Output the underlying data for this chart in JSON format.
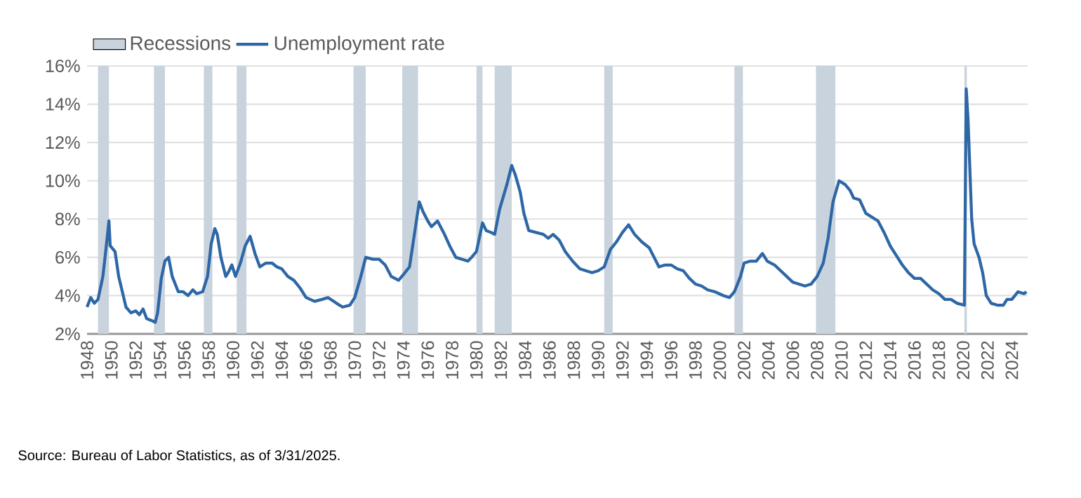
{
  "chart_data": {
    "type": "line",
    "x": [
      1948.0,
      1948.3,
      1948.6,
      1948.9,
      1949.3,
      1949.6,
      1949.8,
      1949.9,
      1950.3,
      1950.6,
      1950.9,
      1951.2,
      1951.6,
      1952.0,
      1952.3,
      1952.6,
      1952.9,
      1953.3,
      1953.6,
      1953.8,
      1954.1,
      1954.4,
      1954.7,
      1955.0,
      1955.5,
      1955.9,
      1956.3,
      1956.7,
      1957.0,
      1957.5,
      1957.9,
      1958.2,
      1958.5,
      1958.7,
      1959.0,
      1959.4,
      1959.6,
      1959.9,
      1960.2,
      1960.6,
      1961.0,
      1961.4,
      1961.8,
      1962.2,
      1962.7,
      1963.2,
      1963.6,
      1964.0,
      1964.5,
      1965.0,
      1965.5,
      1966.0,
      1966.7,
      1967.3,
      1967.8,
      1968.5,
      1969.0,
      1969.6,
      1970.0,
      1970.5,
      1970.9,
      1971.5,
      1972.0,
      1972.5,
      1973.0,
      1973.6,
      1974.0,
      1974.5,
      1974.9,
      1975.3,
      1975.6,
      1976.0,
      1976.3,
      1976.8,
      1977.3,
      1977.8,
      1978.3,
      1978.8,
      1979.3,
      1979.6,
      1980.0,
      1980.5,
      1980.8,
      1981.2,
      1981.5,
      1981.9,
      1982.5,
      1982.9,
      1983.2,
      1983.6,
      1983.9,
      1984.3,
      1984.9,
      1985.5,
      1985.9,
      1986.3,
      1986.8,
      1987.3,
      1987.9,
      1988.5,
      1989.0,
      1989.5,
      1990.0,
      1990.5,
      1991.0,
      1991.5,
      1992.0,
      1992.5,
      1993.0,
      1993.6,
      1994.2,
      1994.6,
      1995.0,
      1995.5,
      1996.0,
      1996.5,
      1997.0,
      1997.5,
      1998.0,
      1998.5,
      1999.0,
      1999.6,
      2000.3,
      2000.8,
      2001.2,
      2001.7,
      2002.0,
      2002.5,
      2003.0,
      2003.5,
      2003.9,
      2004.5,
      2005.0,
      2005.5,
      2006.0,
      2006.5,
      2007.0,
      2007.5,
      2008.0,
      2008.5,
      2008.9,
      2009.3,
      2009.8,
      2010.3,
      2010.7,
      2011.0,
      2011.5,
      2012.0,
      2012.5,
      2013.0,
      2013.5,
      2014.0,
      2014.5,
      2015.0,
      2015.5,
      2016.0,
      2016.5,
      2017.0,
      2017.5,
      2018.0,
      2018.5,
      2019.0,
      2019.5,
      2020.1,
      2020.25,
      2020.4,
      2020.7,
      2020.9,
      2021.3,
      2021.6,
      2021.9,
      2022.3,
      2022.8,
      2023.3,
      2023.6,
      2024.0,
      2024.5,
      2025.0,
      2025.2
    ],
    "series": [
      {
        "name": "Unemployment rate",
        "color": "#2e67a6",
        "values": [
          3.4,
          3.9,
          3.6,
          3.8,
          5.0,
          6.7,
          7.9,
          6.6,
          6.3,
          5.0,
          4.2,
          3.4,
          3.1,
          3.2,
          3.0,
          3.3,
          2.8,
          2.7,
          2.6,
          3.1,
          4.9,
          5.8,
          6.0,
          5.0,
          4.2,
          4.2,
          4.0,
          4.3,
          4.1,
          4.2,
          5.0,
          6.7,
          7.5,
          7.2,
          6.0,
          5.0,
          5.2,
          5.6,
          5.0,
          5.7,
          6.6,
          7.1,
          6.2,
          5.5,
          5.7,
          5.7,
          5.5,
          5.4,
          5.0,
          4.8,
          4.4,
          3.9,
          3.7,
          3.8,
          3.9,
          3.6,
          3.4,
          3.5,
          3.9,
          5.0,
          6.0,
          5.9,
          5.9,
          5.6,
          5.0,
          4.8,
          5.1,
          5.5,
          7.2,
          8.9,
          8.4,
          7.9,
          7.6,
          7.9,
          7.3,
          6.6,
          6.0,
          5.9,
          5.8,
          6.0,
          6.3,
          7.8,
          7.4,
          7.3,
          7.2,
          8.5,
          9.8,
          10.8,
          10.3,
          9.4,
          8.3,
          7.4,
          7.3,
          7.2,
          7.0,
          7.2,
          6.9,
          6.3,
          5.8,
          5.4,
          5.3,
          5.2,
          5.3,
          5.5,
          6.4,
          6.8,
          7.3,
          7.7,
          7.2,
          6.8,
          6.5,
          6.0,
          5.5,
          5.6,
          5.6,
          5.4,
          5.3,
          4.9,
          4.6,
          4.5,
          4.3,
          4.2,
          4.0,
          3.9,
          4.2,
          5.0,
          5.7,
          5.8,
          5.8,
          6.2,
          5.8,
          5.6,
          5.3,
          5.0,
          4.7,
          4.6,
          4.5,
          4.6,
          5.0,
          5.7,
          7.0,
          8.9,
          10.0,
          9.8,
          9.5,
          9.1,
          9.0,
          8.3,
          8.1,
          7.9,
          7.3,
          6.6,
          6.1,
          5.6,
          5.2,
          4.9,
          4.9,
          4.6,
          4.3,
          4.1,
          3.8,
          3.8,
          3.6,
          3.5,
          14.8,
          13.2,
          8.0,
          6.7,
          6.0,
          5.2,
          4.0,
          3.6,
          3.5,
          3.5,
          3.8,
          3.8,
          4.2,
          4.1,
          4.2
        ]
      }
    ],
    "bands": [
      {
        "axis": "x",
        "from": 1948.9,
        "to": 1949.8,
        "label": "Recessions",
        "color": "#c9d3dd"
      },
      {
        "axis": "x",
        "from": 1953.5,
        "to": 1954.4,
        "color": "#c9d3dd"
      },
      {
        "axis": "x",
        "from": 1957.6,
        "to": 1958.3,
        "color": "#c9d3dd"
      },
      {
        "axis": "x",
        "from": 1960.3,
        "to": 1961.1,
        "color": "#c9d3dd"
      },
      {
        "axis": "x",
        "from": 1969.9,
        "to": 1970.9,
        "color": "#c9d3dd"
      },
      {
        "axis": "x",
        "from": 1973.9,
        "to": 1975.2,
        "color": "#c9d3dd"
      },
      {
        "axis": "x",
        "from": 1980.0,
        "to": 1980.5,
        "color": "#c9d3dd"
      },
      {
        "axis": "x",
        "from": 1981.5,
        "to": 1982.9,
        "color": "#c9d3dd"
      },
      {
        "axis": "x",
        "from": 1990.5,
        "to": 1991.2,
        "color": "#c9d3dd"
      },
      {
        "axis": "x",
        "from": 2001.2,
        "to": 2001.9,
        "color": "#c9d3dd"
      },
      {
        "axis": "x",
        "from": 2007.9,
        "to": 2009.5,
        "color": "#c9d3dd"
      },
      {
        "axis": "x",
        "from": 2020.1,
        "to": 2020.3,
        "color": "#c9d3dd"
      }
    ],
    "xlim": [
      1948,
      2025.3
    ],
    "xticks": [
      1948,
      1950,
      1952,
      1954,
      1956,
      1958,
      1960,
      1962,
      1964,
      1966,
      1968,
      1970,
      1972,
      1974,
      1976,
      1978,
      1980,
      1982,
      1984,
      1986,
      1988,
      1990,
      1992,
      1994,
      1996,
      1998,
      2000,
      2002,
      2004,
      2006,
      2008,
      2010,
      2012,
      2014,
      2016,
      2018,
      2020,
      2022,
      2024
    ],
    "ylim": [
      2,
      16
    ],
    "yticks": [
      {
        "value": 2,
        "label": "2%"
      },
      {
        "value": 4,
        "label": "4%"
      },
      {
        "value": 6,
        "label": "6%"
      },
      {
        "value": 8,
        "label": "8%"
      },
      {
        "value": 10,
        "label": "10%"
      },
      {
        "value": 12,
        "label": "12%"
      },
      {
        "value": 14,
        "label": "14%"
      },
      {
        "value": 16,
        "label": "16%"
      }
    ],
    "grid": "y",
    "legend": "top left",
    "marker": "none",
    "line_style": "solid",
    "annotations": [
      "Source: Bureau of Labor Statistics, as of 3/31/2025."
    ]
  }
}
